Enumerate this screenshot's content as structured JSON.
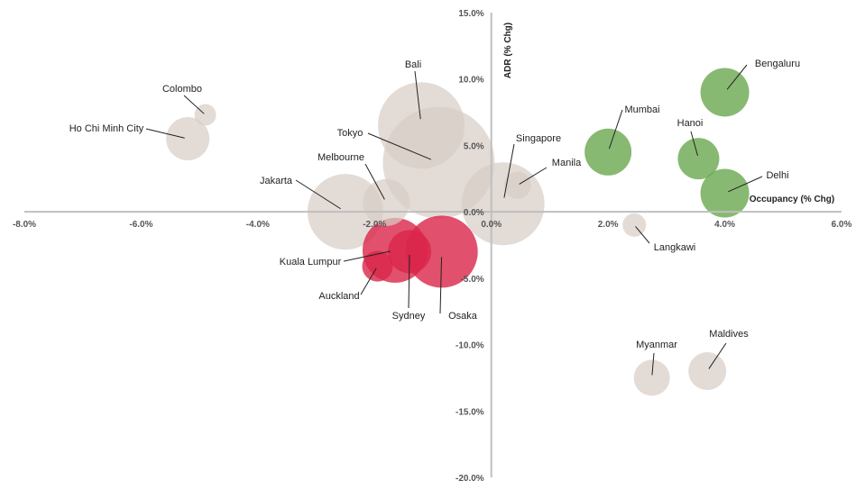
{
  "chart_data": {
    "type": "bubble",
    "title": "",
    "xlabel": "Occupancy (% Chg)",
    "ylabel": "ADR (% Chg)",
    "xlim": [
      -8,
      6
    ],
    "ylim": [
      -20,
      15
    ],
    "x_ticks": [
      "-8.0%",
      "-6.0%",
      "-4.0%",
      "-2.0%",
      "0.0%",
      "2.0%",
      "4.0%",
      "6.0%"
    ],
    "y_ticks": [
      "15.0%",
      "10.0%",
      "5.0%",
      "0.0%",
      "-5.0%",
      "-10.0%",
      "-15.0%",
      "-20.0%"
    ],
    "colors": {
      "neutral": "#d8cdc6",
      "negative": "#d9264a",
      "positive": "#6aa84f",
      "axis": "#bfbfbf"
    },
    "points": [
      {
        "label": "Colombo",
        "x": -4.9,
        "y": 7.3,
        "size": 12,
        "group": "neutral"
      },
      {
        "label": "Ho Chi Minh City",
        "x": -5.2,
        "y": 5.5,
        "size": 24,
        "group": "neutral"
      },
      {
        "label": "Bali",
        "x": -1.2,
        "y": 6.5,
        "size": 48,
        "group": "neutral"
      },
      {
        "label": "Tokyo",
        "x": -0.9,
        "y": 3.7,
        "size": 62,
        "group": "neutral"
      },
      {
        "label": "Melbourne",
        "x": -1.8,
        "y": 0.7,
        "size": 26,
        "group": "neutral"
      },
      {
        "label": "Jakarta",
        "x": -2.5,
        "y": 0.0,
        "size": 42,
        "group": "neutral"
      },
      {
        "label": "Singapore",
        "x": 0.2,
        "y": 0.6,
        "size": 46,
        "group": "neutral"
      },
      {
        "label": "Manila",
        "x": 0.45,
        "y": 2.0,
        "size": 15,
        "group": "neutral"
      },
      {
        "label": "Kuala Lumpur",
        "x": -1.65,
        "y": -2.9,
        "size": 36,
        "group": "negative"
      },
      {
        "label": "Auckland",
        "x": -1.95,
        "y": -4.1,
        "size": 17,
        "group": "negative"
      },
      {
        "label": "Sydney",
        "x": -1.4,
        "y": -3.0,
        "size": 24,
        "group": "negative"
      },
      {
        "label": "Osaka",
        "x": -0.85,
        "y": -3.0,
        "size": 40,
        "group": "negative"
      },
      {
        "label": "Mumbai",
        "x": 2.0,
        "y": 4.5,
        "size": 26,
        "group": "positive"
      },
      {
        "label": "Bengaluru",
        "x": 4.0,
        "y": 9.0,
        "size": 27,
        "group": "positive"
      },
      {
        "label": "Hanoi",
        "x": 3.55,
        "y": 4.0,
        "size": 23,
        "group": "positive"
      },
      {
        "label": "Delhi",
        "x": 4.0,
        "y": 1.4,
        "size": 27,
        "group": "positive"
      },
      {
        "label": "Langkawi",
        "x": 2.45,
        "y": -1.0,
        "size": 13,
        "group": "neutral"
      },
      {
        "label": "Myanmar",
        "x": 2.75,
        "y": -12.5,
        "size": 20,
        "group": "neutral"
      },
      {
        "label": "Maldives",
        "x": 3.7,
        "y": -12.0,
        "size": 21,
        "group": "neutral"
      }
    ]
  }
}
